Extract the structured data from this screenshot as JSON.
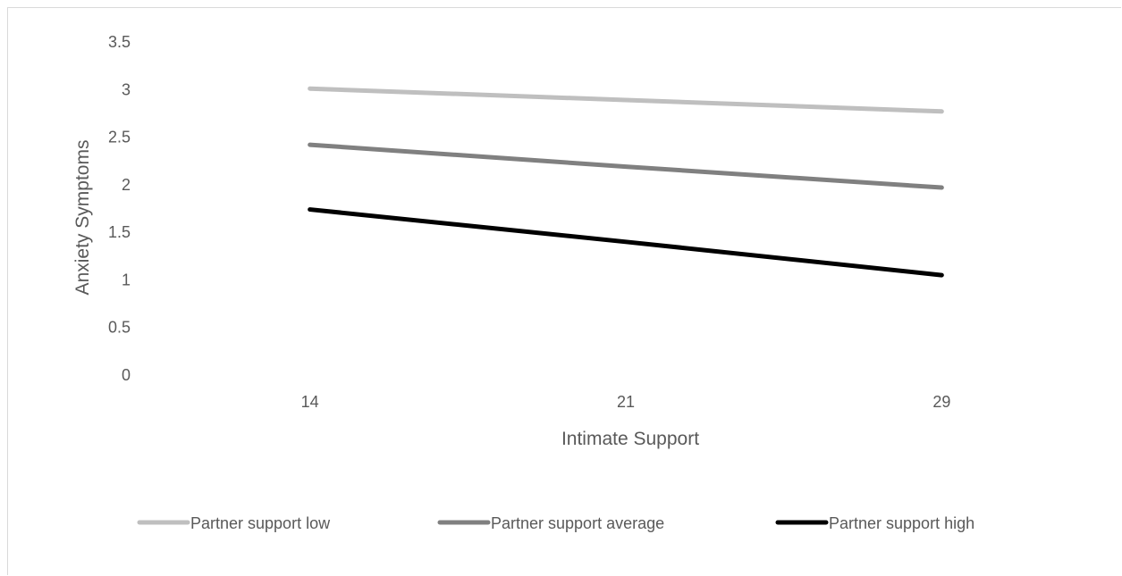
{
  "chart_data": {
    "type": "line",
    "title": "",
    "xlabel": "Intimate Support",
    "ylabel": "Anxiety Symptoms",
    "categories": [
      "14",
      "21",
      "29"
    ],
    "y_ticks": [
      "0",
      "0.5",
      "1",
      "1.5",
      "2",
      "2.5",
      "3",
      "3.5"
    ],
    "ylim": [
      0,
      3.5
    ],
    "grid": false,
    "legend_position": "bottom",
    "series": [
      {
        "name": "Partner support low",
        "values": [
          3.01,
          2.89,
          2.77
        ],
        "color": "#bfbfbf"
      },
      {
        "name": "Partner support average",
        "values": [
          2.42,
          2.19,
          1.97
        ],
        "color": "#808080"
      },
      {
        "name": "Partner support high",
        "values": [
          1.74,
          1.4,
          1.05
        ],
        "color": "#000000"
      }
    ]
  }
}
